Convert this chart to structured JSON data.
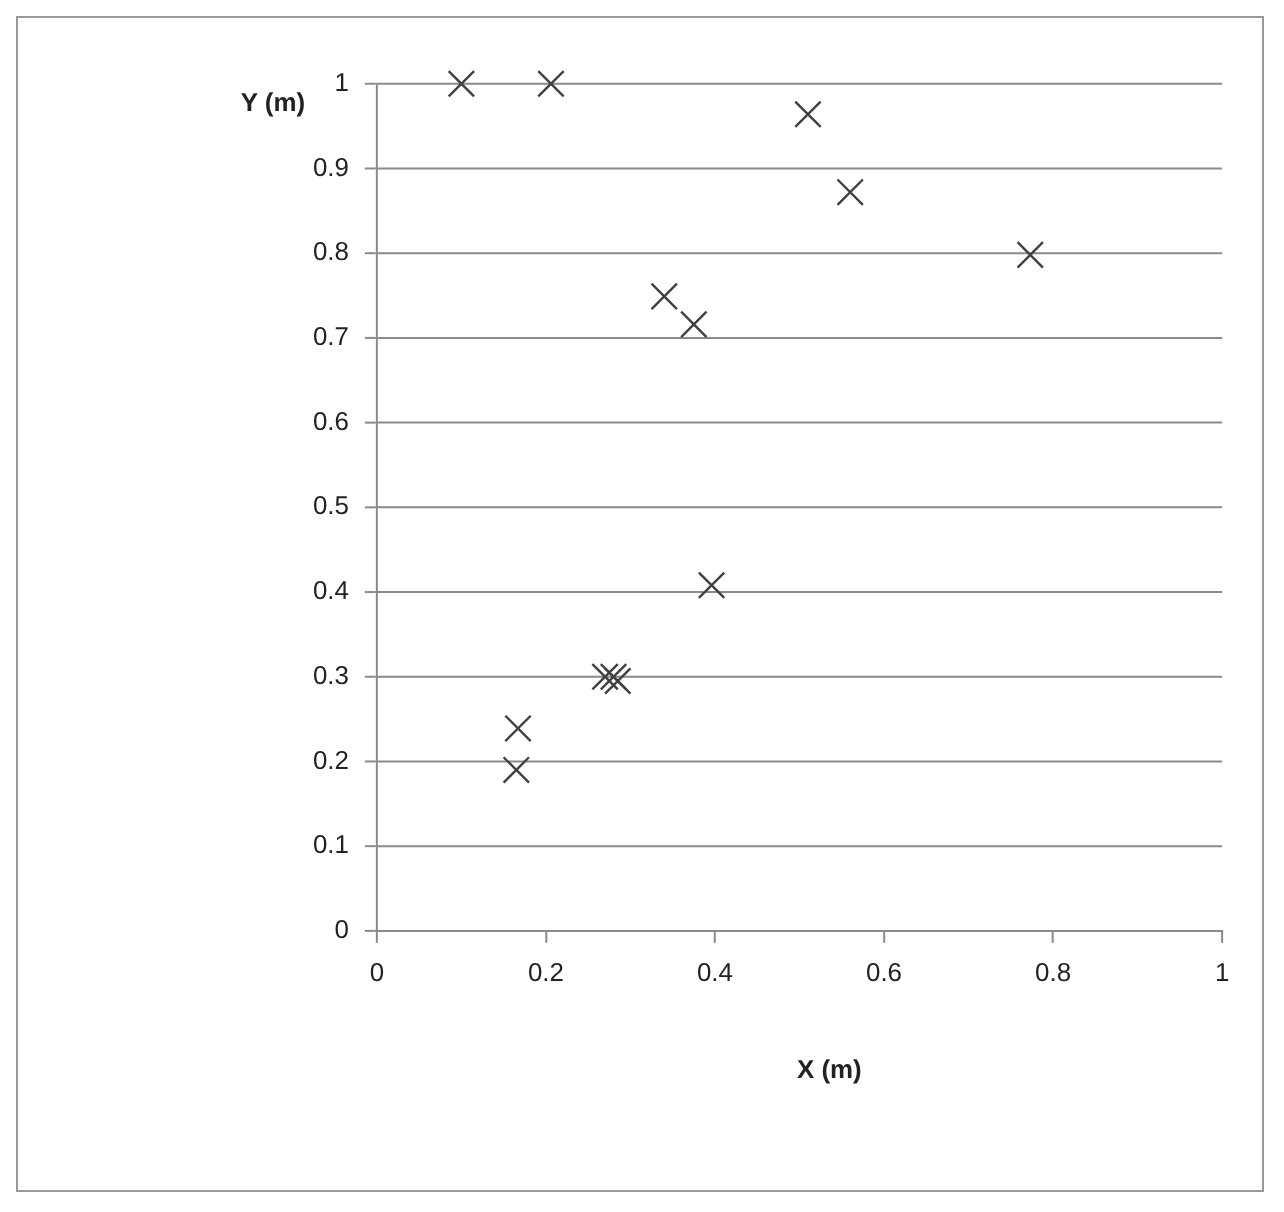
{
  "chart_data": {
    "type": "scatter",
    "xlabel": "X (m)",
    "ylabel": "Y (m)",
    "x": [
      0.1,
      0.206,
      0.51,
      0.56,
      0.773,
      0.34,
      0.375,
      0.396,
      0.27,
      0.28,
      0.285,
      0.167,
      0.165
    ],
    "values": [
      1.0,
      1.0,
      0.964,
      0.872,
      0.798,
      0.749,
      0.716,
      0.408,
      0.3,
      0.3,
      0.295,
      0.239,
      0.19
    ],
    "color": "#404040",
    "marker": "cross",
    "xlim": [
      0,
      1
    ],
    "xticks": [
      0,
      0.2,
      0.4,
      0.6,
      0.8,
      1
    ],
    "ylim": [
      0,
      1
    ],
    "yticks": [
      0,
      0.1,
      0.2,
      0.3,
      0.4,
      0.5,
      0.6,
      0.7,
      0.8,
      0.9,
      1
    ],
    "grid": "y",
    "legend": false
  }
}
